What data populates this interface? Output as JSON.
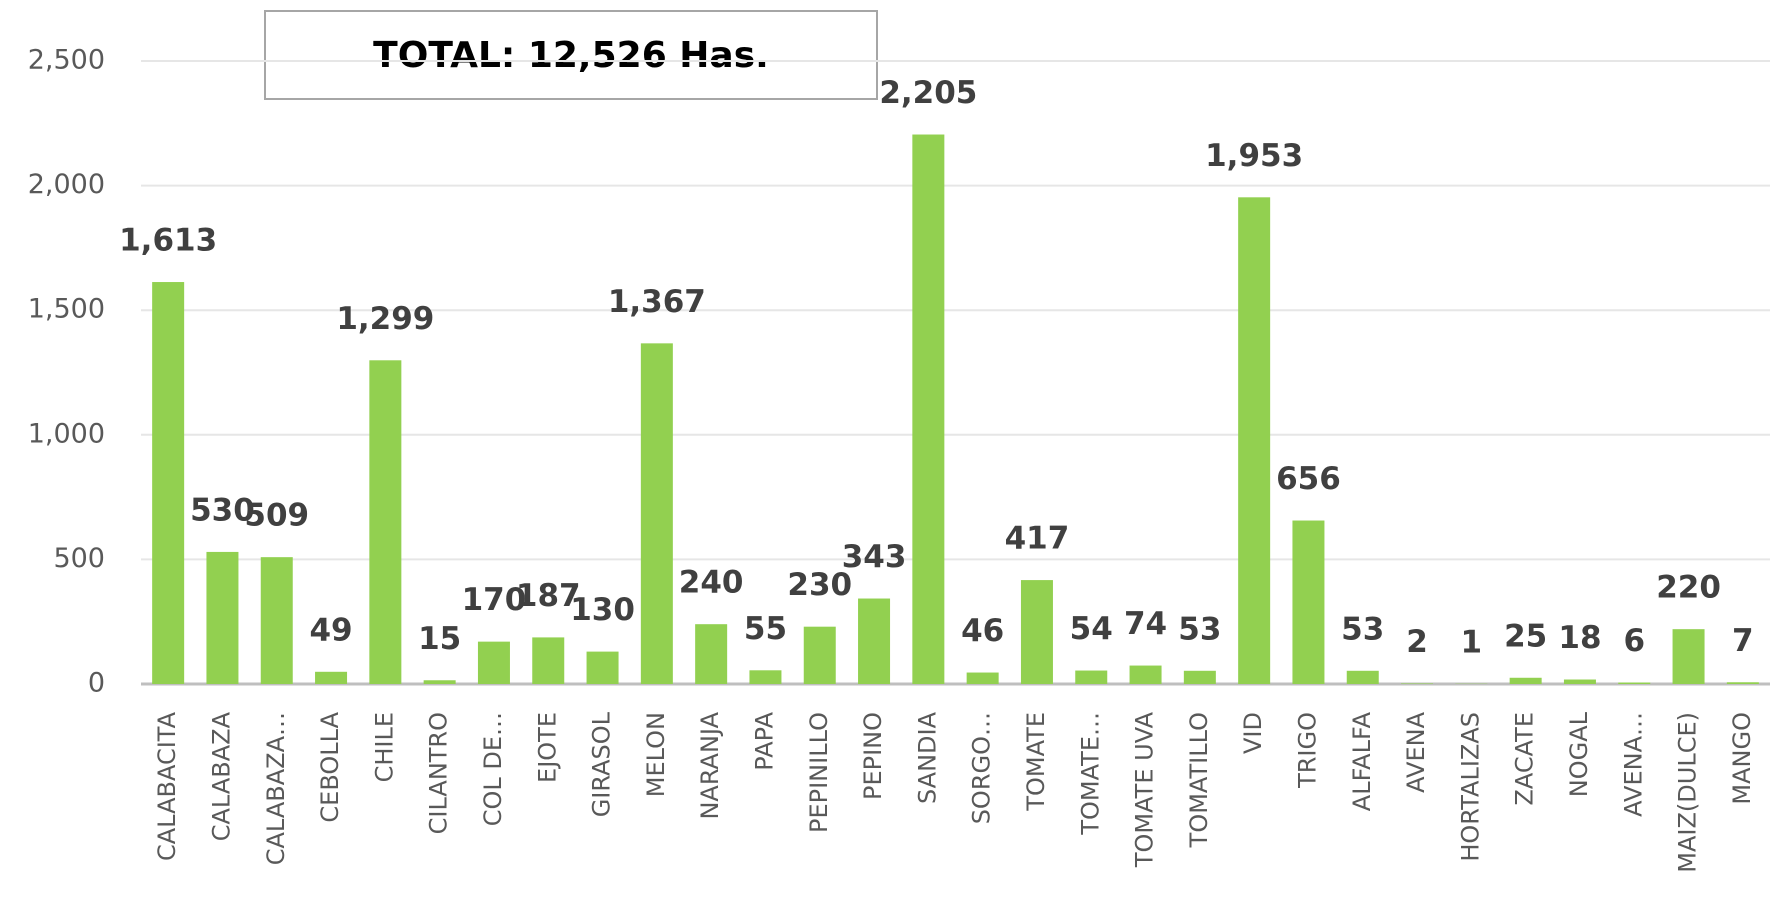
{
  "chart_data": {
    "type": "bar",
    "title": "TOTAL: 12,526 Has.",
    "categories": [
      "CALABACITA",
      "CALABAZA",
      "CALABAZA…",
      "CEBOLLA",
      "CHILE",
      "CILANTRO",
      "COL DE…",
      "EJOTE",
      "GIRASOL",
      "MELON",
      "NARANJA",
      "PAPA",
      "PEPINILLO",
      "PEPINO",
      "SANDIA",
      "SORGO…",
      "TOMATE",
      "TOMATE…",
      "TOMATE  UVA",
      "TOMATILLO",
      "VID",
      "TRIGO",
      "ALFALFA",
      "AVENA",
      "HORTALIZAS",
      "ZACATE",
      "NOGAL",
      "AVENA…",
      "MAIZ(DULCE)",
      "MANGO"
    ],
    "values": [
      1613,
      530,
      509,
      49,
      1299,
      15,
      170,
      187,
      130,
      1367,
      240,
      55,
      230,
      343,
      2205,
      46,
      417,
      54,
      74,
      53,
      1953,
      656,
      53,
      2,
      1,
      25,
      18,
      6,
      220,
      7
    ],
    "value_labels": [
      "1,613",
      "530",
      "509",
      "49",
      "1,299",
      "15",
      "170",
      "187",
      "130",
      "1,367",
      "240",
      "55",
      "230",
      "343",
      "2,205",
      "46",
      "417",
      "54",
      "74",
      "53",
      "1,953",
      "656",
      "53",
      "2",
      "1",
      "25",
      "18",
      "6",
      "220",
      "7"
    ],
    "color": "#92d050",
    "ylim": [
      0,
      2500
    ],
    "yticks": [
      0,
      500,
      {
        "value": 1000,
        "label": "1,000"
      },
      {
        "value": 1500,
        "label": "1,500"
      },
      {
        "value": 2000,
        "label": "2,000"
      },
      {
        "value": 2500,
        "label": "2,500"
      }
    ],
    "grid": true
  }
}
